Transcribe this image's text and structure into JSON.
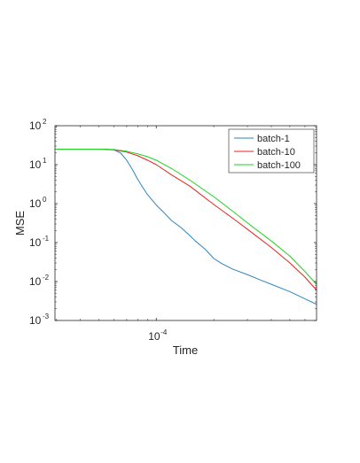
{
  "chart_data": {
    "type": "line",
    "title": "",
    "xlabel": "Time",
    "ylabel": "MSE",
    "xscale": "log",
    "yscale": "log",
    "xlim": [
      2.95e-05,
      0.00069
    ],
    "ylim": [
      0.001,
      100
    ],
    "grid": false,
    "legend_position": "top-right",
    "xticks": [
      {
        "value": 0.0001,
        "base": "10",
        "exp": "-4"
      }
    ],
    "yticks": [
      {
        "value": 0.001,
        "base": "10",
        "exp": "-3"
      },
      {
        "value": 0.01,
        "base": "10",
        "exp": "-2"
      },
      {
        "value": 0.1,
        "base": "10",
        "exp": "-1"
      },
      {
        "value": 1,
        "base": "10",
        "exp": "0"
      },
      {
        "value": 10,
        "base": "10",
        "exp": "1"
      },
      {
        "value": 100,
        "base": "10",
        "exp": "2"
      }
    ],
    "series": [
      {
        "name": "batch-1",
        "color": "#2e86c1",
        "x": [
          2.95e-05,
          4.5e-05,
          5.5e-05,
          6e-05,
          6.5e-05,
          7e-05,
          7.5e-05,
          8e-05,
          8.5e-05,
          9e-05,
          0.0001,
          0.00011,
          0.00012,
          0.000135,
          0.00015,
          0.00016,
          0.00018,
          0.0002,
          0.00022,
          0.00025,
          0.0003,
          0.00035,
          0.0004,
          0.0005,
          0.0006,
          0.00069
        ],
        "y": [
          25,
          25,
          25,
          24,
          20,
          13,
          7.5,
          4.2,
          2.6,
          1.7,
          0.92,
          0.58,
          0.37,
          0.24,
          0.15,
          0.11,
          0.068,
          0.039,
          0.029,
          0.021,
          0.015,
          0.011,
          0.0085,
          0.0055,
          0.0036,
          0.0026
        ]
      },
      {
        "name": "batch-10",
        "color": "#e8231b",
        "x": [
          2.95e-05,
          5e-05,
          6e-05,
          7e-05,
          8e-05,
          9e-05,
          0.0001,
          0.00012,
          0.00015,
          0.0002,
          0.00025,
          0.0003,
          0.0004,
          0.0005,
          0.0006,
          0.00069
        ],
        "y": [
          25,
          25,
          24,
          21,
          17,
          13,
          10,
          5.5,
          2.8,
          0.95,
          0.43,
          0.22,
          0.075,
          0.03,
          0.013,
          0.006
        ]
      },
      {
        "name": "batch-100",
        "color": "#1fd31f",
        "x": [
          2.95e-05,
          5e-05,
          6e-05,
          7e-05,
          8e-05,
          9e-05,
          0.0001,
          0.00012,
          0.00015,
          0.0002,
          0.00025,
          0.0003,
          0.0004,
          0.0005,
          0.0006,
          0.00069
        ],
        "y": [
          25,
          25,
          24.5,
          22,
          19,
          16,
          13,
          8,
          4,
          1.5,
          0.65,
          0.32,
          0.11,
          0.045,
          0.018,
          0.0085
        ]
      }
    ]
  }
}
